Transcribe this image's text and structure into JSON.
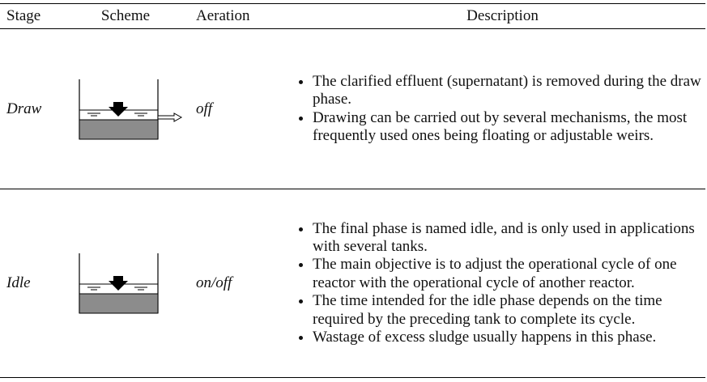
{
  "table": {
    "columns": [
      "Stage",
      "Scheme",
      "Aeration",
      "Description"
    ],
    "rows": [
      {
        "stage": "Draw",
        "aeration": "off",
        "description": [
          "The clarified effluent (supernatant) is removed during the draw phase.",
          "Drawing can be carried out by several mechanisms, the most frequently used ones being floating or adjustable weirs."
        ]
      },
      {
        "stage": "Idle",
        "aeration": "on/off",
        "description": [
          "The final phase is named idle, and is only used in applications with several tanks.",
          "The main objective is to adjust the operational cycle of one reactor with the operational cycle of another reactor.",
          "The time intended for the idle phase depends on the time required by the preceding tank to complete its cycle.",
          "Wastage of excess sludge usually happens in this phase."
        ]
      }
    ]
  }
}
